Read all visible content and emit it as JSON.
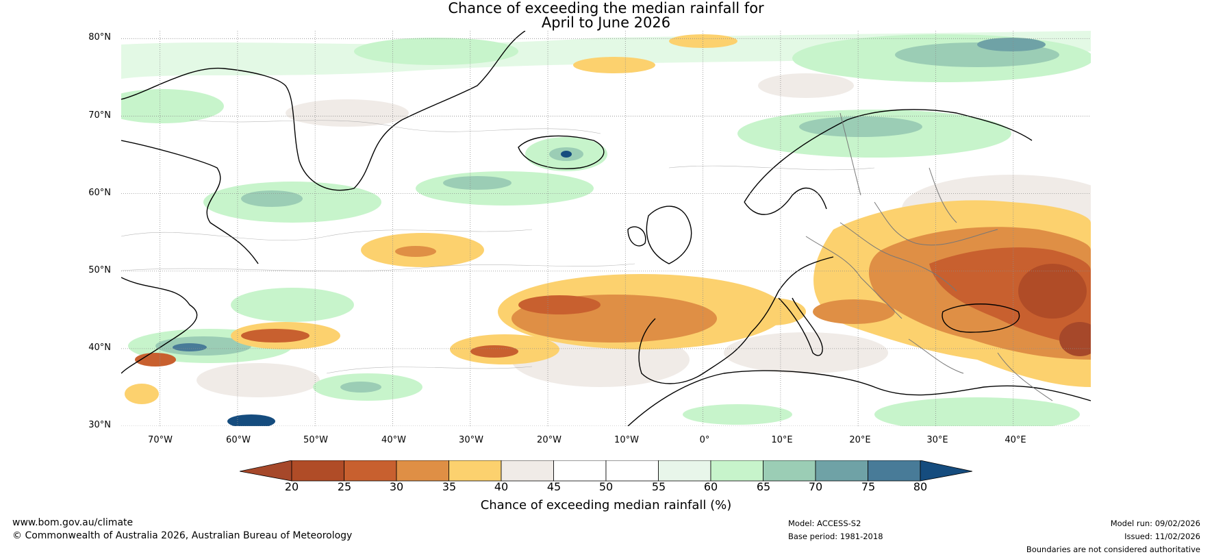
{
  "title": {
    "line1": "Chance of exceeding the median rainfall for",
    "line2": "April to June 2026"
  },
  "map": {
    "region": "North Atlantic and Europe",
    "lon_range": [
      -75,
      50
    ],
    "lat_range": [
      30,
      81
    ],
    "lat_labels": [
      "80°N",
      "70°N",
      "60°N",
      "50°N",
      "40°N",
      "30°N"
    ],
    "lat_values": [
      80,
      70,
      60,
      50,
      40,
      30
    ],
    "lon_labels": [
      "70°W",
      "60°W",
      "50°W",
      "40°W",
      "30°W",
      "20°W",
      "10°W",
      "0°",
      "10°E",
      "20°E",
      "30°E",
      "40°E"
    ],
    "lon_values": [
      -70,
      -60,
      -50,
      -40,
      -30,
      -20,
      -10,
      0,
      10,
      20,
      30,
      40
    ]
  },
  "colorbar": {
    "ticks": [
      "20",
      "25",
      "30",
      "35",
      "40",
      "45",
      "50",
      "55",
      "60",
      "65",
      "70",
      "75",
      "80"
    ],
    "colors": [
      "#a6482a",
      "#b04c27",
      "#c8602f",
      "#df8f45",
      "#fcd16e",
      "#f0ebe7",
      "#ffffff",
      "#ffffff",
      "#e8f6ea",
      "#c7f4cb",
      "#9bcdb5",
      "#6fa2a6",
      "#487b98",
      "#154c7e"
    ],
    "label": "Chance of exceeding median rainfall (%)"
  },
  "footer": {
    "website": "www.bom.gov.au/climate",
    "copyright": "© Commonwealth of Australia 2026, Australian Bureau of Meteorology",
    "model": "Model: ACCESS-S2",
    "base_period": "Base period: 1981-2018",
    "model_run": "Model run: 09/02/2026",
    "issued": "Issued: 11/02/2026",
    "disclaimer": "Boundaries are not considered authoritative"
  }
}
